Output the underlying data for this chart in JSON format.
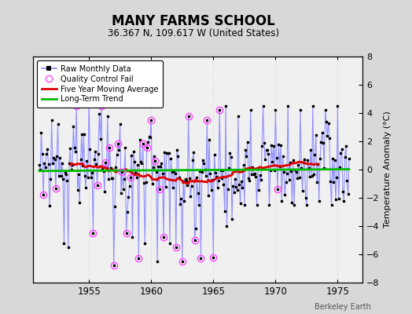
{
  "title": "MANY FARMS SCHOOL",
  "subtitle": "36.367 N, 109.617 W (United States)",
  "ylabel": "Temperature Anomaly (°C)",
  "watermark": "Berkeley Earth",
  "ylim": [
    -8,
    8
  ],
  "xlim": [
    1950.5,
    1977.0
  ],
  "xticks": [
    1955,
    1960,
    1965,
    1970,
    1975
  ],
  "yticks": [
    -8,
    -6,
    -4,
    -2,
    0,
    2,
    4,
    6,
    8
  ],
  "fig_bg_color": "#d8d8d8",
  "plot_bg_color": "#f0f0f0",
  "raw_line_color": "#8888ff",
  "raw_dot_color": "#000000",
  "ma_color": "#dd0000",
  "trend_color": "#00bb00",
  "qc_color": "#ff44ff",
  "grid_color": "#cccccc",
  "title_fontsize": 12,
  "subtitle_fontsize": 9,
  "seed": 99,
  "start_year": 1951.0,
  "n_months": 300
}
